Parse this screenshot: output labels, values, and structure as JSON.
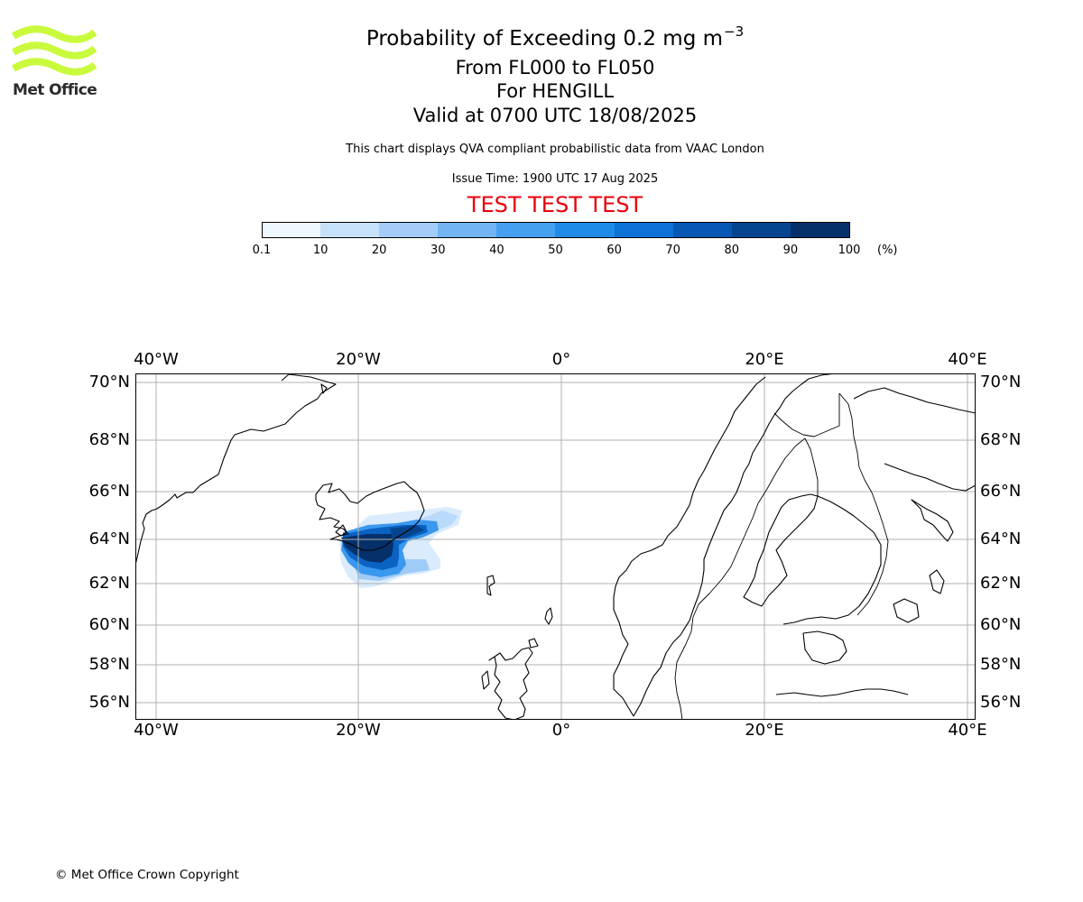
{
  "brand": {
    "logo_text": "Met Office",
    "logo_color": "#c9fa3c"
  },
  "header": {
    "title_main": "Probability of Exceeding 0.2 mg m",
    "title_exponent": "−3",
    "level_range": "From FL000 to FL050",
    "volcano": "For HENGILL",
    "valid_time": "Valid at 0700 UTC 18/08/2025",
    "description": "This chart displays QVA compliant probabilistic data from VAAC London",
    "issue_time": "Issue Time: 1900 UTC 17 Aug 2025",
    "test_banner": "TEST TEST TEST",
    "test_banner_color": "#e8000b"
  },
  "colorbar": {
    "ticks": [
      "0.1",
      "10",
      "20",
      "30",
      "40",
      "50",
      "60",
      "70",
      "80",
      "90",
      "100"
    ],
    "unit": "(%)",
    "colors": [
      "#eef6ff",
      "#c8e1fb",
      "#a3cdf8",
      "#72b4f4",
      "#45a0f0",
      "#1f8be8",
      "#0d72d6",
      "#0658b4",
      "#05448f",
      "#05306a"
    ]
  },
  "map": {
    "lon_labels": [
      "40°W",
      "20°W",
      "0°",
      "20°E",
      "40°E"
    ],
    "lat_labels": [
      "70°N",
      "68°N",
      "66°N",
      "64°N",
      "62°N",
      "60°N",
      "58°N",
      "56°N"
    ],
    "gridline_color": "#b0b0b0",
    "coastline_color": "#000000",
    "plume_probability_percent": {
      "core": "90–100",
      "inner": "60–90",
      "fringe": "0.1–40"
    }
  },
  "footer": {
    "copyright": "© Met Office Crown Copyright"
  }
}
